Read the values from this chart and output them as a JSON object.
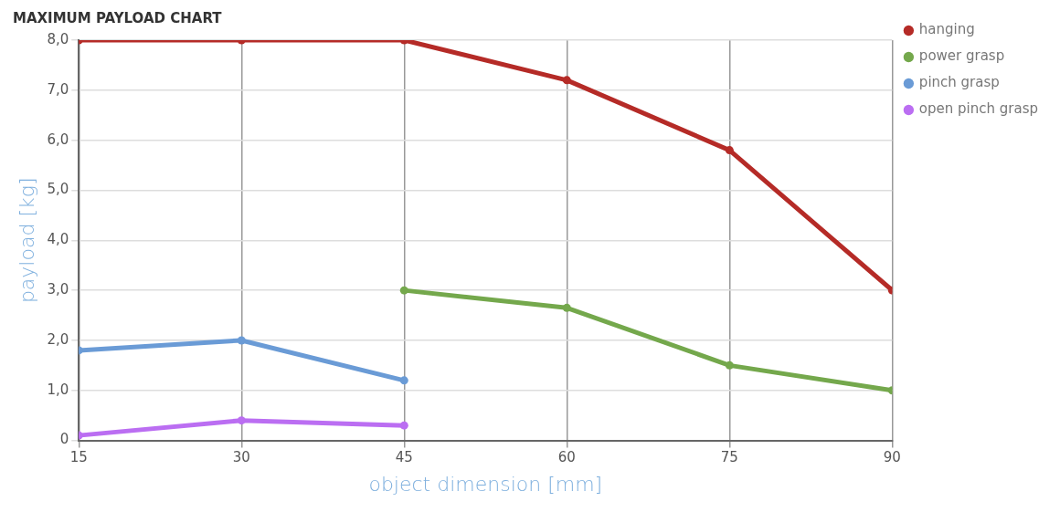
{
  "chart_data": {
    "type": "line",
    "title": "MAXIMUM PAYLOAD CHART",
    "xlabel": "object dimension [mm]",
    "ylabel": "payload [kg]",
    "x": [
      15,
      30,
      45,
      60,
      75,
      90
    ],
    "series": [
      {
        "name": "hanging",
        "color": "#b52b27",
        "values": [
          8,
          8,
          8,
          7.2,
          5.8,
          3.0
        ]
      },
      {
        "name": "power grasp",
        "color": "#74a84c",
        "values": [
          null,
          null,
          3.0,
          2.65,
          1.5,
          1.0
        ]
      },
      {
        "name": "pinch grasp",
        "color": "#6a9bd6",
        "values": [
          1.8,
          2.0,
          1.2,
          null,
          null,
          null
        ]
      },
      {
        "name": "open pinch grasp",
        "color": "#bb6ef2",
        "values": [
          0.1,
          0.4,
          0.3,
          null,
          null,
          null
        ]
      }
    ],
    "xlim": [
      15,
      90
    ],
    "xticks": [
      15,
      30,
      45,
      60,
      75,
      90
    ],
    "ylim": [
      0,
      8
    ],
    "yticks": [
      {
        "value": 0,
        "label": "0"
      },
      {
        "value": 1,
        "label": "1,0"
      },
      {
        "value": 2,
        "label": "2,0"
      },
      {
        "value": 3,
        "label": "3,0"
      },
      {
        "value": 4,
        "label": "4,0"
      },
      {
        "value": 5,
        "label": "5,0"
      },
      {
        "value": 6,
        "label": "6,0"
      },
      {
        "value": 7,
        "label": "7,0"
      },
      {
        "value": 8,
        "label": "8,0"
      }
    ],
    "grid": true,
    "legend": "top right",
    "marker": "circle",
    "line_style": "solid"
  }
}
